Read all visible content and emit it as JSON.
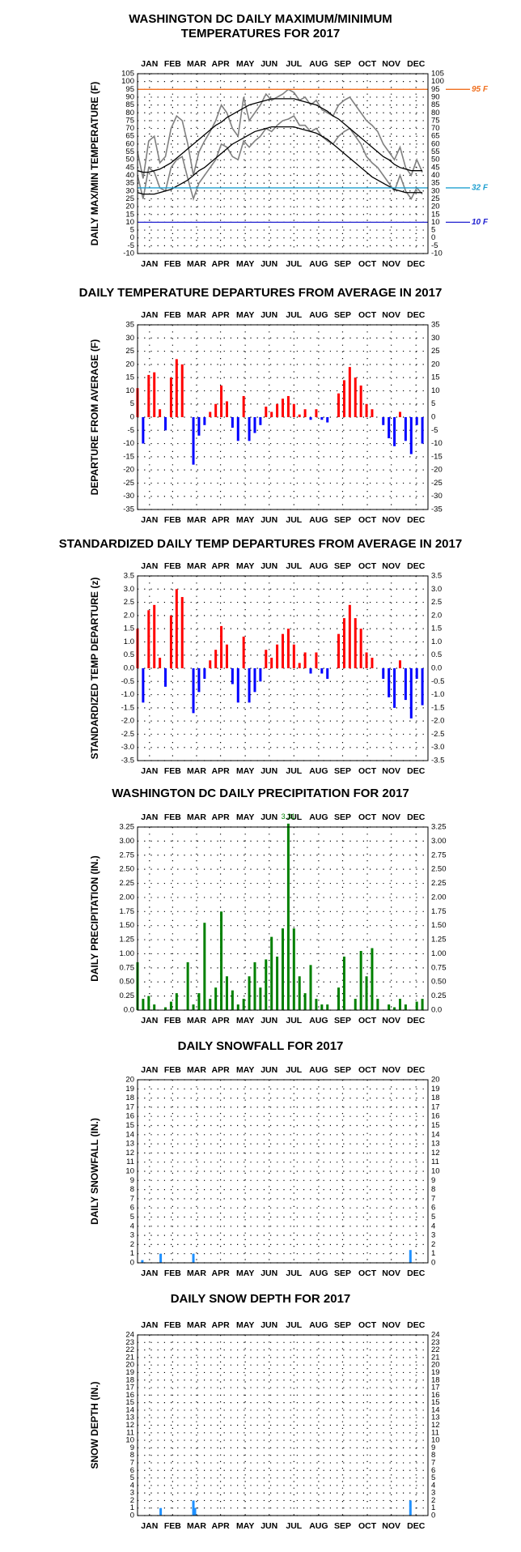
{
  "chart_data": [
    {
      "type": "line",
      "title": [
        "WASHINGTON DC DAILY MAXIMUM/MINIMUM",
        "TEMPERATURES FOR 2017"
      ],
      "y_label": "DAILY MAX/MIN TEMPERATURE (F)",
      "xlim": [
        1,
        365
      ],
      "xticks": [
        {
          "value": 16,
          "label": "JAN"
        },
        {
          "value": 45,
          "label": "FEB"
        },
        {
          "value": 75,
          "label": "MAR"
        },
        {
          "value": 105,
          "label": "APR"
        },
        {
          "value": 136,
          "label": "MAY"
        },
        {
          "value": 166,
          "label": "JUN"
        },
        {
          "value": 197,
          "label": "JUL"
        },
        {
          "value": 228,
          "label": "AUG"
        },
        {
          "value": 258,
          "label": "SEP"
        },
        {
          "value": 289,
          "label": "OCT"
        },
        {
          "value": 319,
          "label": "NOV"
        },
        {
          "value": 350,
          "label": "DEC"
        }
      ],
      "ylim": [
        -10,
        105
      ],
      "yticks": [
        -10,
        -5,
        0,
        5,
        10,
        15,
        20,
        25,
        30,
        35,
        40,
        45,
        50,
        55,
        60,
        65,
        70,
        75,
        80,
        85,
        90,
        95,
        100,
        105
      ],
      "x": [
        1,
        8,
        15,
        22,
        29,
        36,
        43,
        50,
        57,
        64,
        71,
        78,
        85,
        92,
        99,
        106,
        113,
        120,
        127,
        134,
        141,
        148,
        155,
        162,
        169,
        176,
        183,
        190,
        197,
        204,
        211,
        218,
        225,
        232,
        239,
        246,
        253,
        260,
        267,
        274,
        281,
        288,
        295,
        302,
        309,
        316,
        323,
        330,
        337,
        344,
        351,
        358
      ],
      "series": [
        {
          "color": "#808080",
          "values": [
            55,
            38,
            62,
            65,
            48,
            52,
            70,
            78,
            75,
            60,
            40,
            55,
            62,
            68,
            75,
            85,
            80,
            70,
            65,
            90,
            75,
            80,
            85,
            92,
            88,
            90,
            92,
            95,
            93,
            88,
            90,
            85,
            88,
            82,
            80,
            78,
            85,
            88,
            90,
            85,
            80,
            75,
            72,
            68,
            60,
            55,
            50,
            58,
            45,
            40,
            50,
            42
          ]
        },
        {
          "color": "#808080",
          "values": [
            40,
            25,
            45,
            42,
            32,
            30,
            45,
            50,
            52,
            38,
            25,
            35,
            40,
            45,
            50,
            60,
            58,
            52,
            50,
            62,
            58,
            62,
            65,
            70,
            68,
            72,
            75,
            76,
            78,
            72,
            72,
            68,
            70,
            65,
            62,
            60,
            65,
            68,
            70,
            65,
            60,
            52,
            48,
            45,
            40,
            35,
            30,
            40,
            30,
            25,
            32,
            28
          ]
        },
        {
          "color": "#000000",
          "values": [
            43,
            42,
            42,
            43,
            44,
            46,
            48,
            51,
            54,
            57,
            60,
            63,
            66,
            69,
            72,
            74,
            77,
            79,
            81,
            83,
            85,
            86,
            87,
            88,
            89,
            89,
            89,
            89,
            89,
            88,
            87,
            86,
            85,
            83,
            81,
            78,
            76,
            73,
            70,
            67,
            64,
            61,
            58,
            55,
            52,
            50,
            47,
            45,
            44,
            43,
            43,
            43
          ]
        },
        {
          "color": "#000000",
          "values": [
            29,
            28,
            28,
            28,
            29,
            30,
            31,
            33,
            35,
            37,
            40,
            43,
            45,
            48,
            51,
            54,
            57,
            60,
            62,
            64,
            66,
            68,
            69,
            70,
            71,
            71,
            71,
            71,
            71,
            70,
            69,
            68,
            67,
            65,
            63,
            60,
            57,
            54,
            51,
            48,
            45,
            42,
            39,
            37,
            35,
            33,
            31,
            30,
            29,
            29,
            29,
            29
          ]
        }
      ],
      "ref_lines": [
        {
          "value": 95,
          "label": "95 F",
          "color": "#f07020"
        },
        {
          "value": 32,
          "label": "32 F",
          "color": "#20a0d0"
        },
        {
          "value": 10,
          "label": "10 F",
          "color": "#2020d0"
        }
      ]
    },
    {
      "type": "bar",
      "title": [
        "DAILY TEMPERATURE DEPARTURES FROM AVERAGE IN 2017"
      ],
      "y_label": "DEPARTURE FROM AVERAGE (F)",
      "xlim": [
        1,
        365
      ],
      "xticks": [
        {
          "value": 16,
          "label": "JAN"
        },
        {
          "value": 45,
          "label": "FEB"
        },
        {
          "value": 75,
          "label": "MAR"
        },
        {
          "value": 105,
          "label": "APR"
        },
        {
          "value": 136,
          "label": "MAY"
        },
        {
          "value": 166,
          "label": "JUN"
        },
        {
          "value": 197,
          "label": "JUL"
        },
        {
          "value": 228,
          "label": "AUG"
        },
        {
          "value": 258,
          "label": "SEP"
        },
        {
          "value": 289,
          "label": "OCT"
        },
        {
          "value": 319,
          "label": "NOV"
        },
        {
          "value": 350,
          "label": "DEC"
        }
      ],
      "ylim": [
        -35,
        35
      ],
      "yticks": [
        -35,
        -30,
        -25,
        -20,
        -15,
        -10,
        -5,
        0,
        5,
        10,
        15,
        20,
        25,
        30,
        35
      ],
      "x": [
        1,
        8,
        15,
        22,
        29,
        36,
        43,
        50,
        57,
        64,
        71,
        78,
        85,
        92,
        99,
        106,
        113,
        120,
        127,
        134,
        141,
        148,
        155,
        162,
        169,
        176,
        183,
        190,
        197,
        204,
        211,
        218,
        225,
        232,
        239,
        246,
        253,
        260,
        267,
        274,
        281,
        288,
        295,
        302,
        309,
        316,
        323,
        330,
        337,
        344,
        351,
        358
      ],
      "values": [
        11,
        -10,
        16,
        17,
        3,
        -5,
        15,
        22,
        20,
        0,
        -18,
        -7,
        -3,
        2,
        5,
        12,
        6,
        -4,
        -9,
        8,
        -9,
        -6,
        -3,
        4,
        2,
        5,
        7,
        8,
        5,
        1,
        3,
        -1,
        3,
        -1,
        -2,
        0,
        9,
        14,
        19,
        15,
        12,
        5,
        3,
        0,
        -3,
        -8,
        -11,
        2,
        -9,
        -14,
        -3,
        -10
      ],
      "color": "#ff0000",
      "negative_color": "#0000ff"
    },
    {
      "type": "bar",
      "title": [
        "STANDARDIZED DAILY TEMP DEPARTURES FROM AVERAGE IN 2017"
      ],
      "y_label": "STANDARDIZED TEMP DEPARTURE (z)",
      "xlim": [
        1,
        365
      ],
      "xticks": [
        {
          "value": 16,
          "label": "JAN"
        },
        {
          "value": 45,
          "label": "FEB"
        },
        {
          "value": 75,
          "label": "MAR"
        },
        {
          "value": 105,
          "label": "APR"
        },
        {
          "value": 136,
          "label": "MAY"
        },
        {
          "value": 166,
          "label": "JUN"
        },
        {
          "value": 197,
          "label": "JUL"
        },
        {
          "value": 228,
          "label": "AUG"
        },
        {
          "value": 258,
          "label": "SEP"
        },
        {
          "value": 289,
          "label": "OCT"
        },
        {
          "value": 319,
          "label": "NOV"
        },
        {
          "value": 350,
          "label": "DEC"
        }
      ],
      "ylim": [
        -3.5,
        3.5
      ],
      "yticks": [
        -3.5,
        {
          "value": -3,
          "label": "-3.0"
        },
        -2.5,
        {
          "value": -2,
          "label": "-2.0"
        },
        -1.5,
        {
          "value": -1,
          "label": "-1.0"
        },
        -0.5,
        {
          "value": 0,
          "label": "0.0"
        },
        0.5,
        {
          "value": 1,
          "label": "1.0"
        },
        1.5,
        {
          "value": 2,
          "label": "2.0"
        },
        2.5,
        {
          "value": 3,
          "label": "3.0"
        },
        3.5
      ],
      "x": [
        1,
        8,
        15,
        22,
        29,
        36,
        43,
        50,
        57,
        64,
        71,
        78,
        85,
        92,
        99,
        106,
        113,
        120,
        127,
        134,
        141,
        148,
        155,
        162,
        169,
        176,
        183,
        190,
        197,
        204,
        211,
        218,
        225,
        232,
        239,
        246,
        253,
        260,
        267,
        274,
        281,
        288,
        295,
        302,
        309,
        316,
        323,
        330,
        337,
        344,
        351,
        358
      ],
      "values": [
        1.5,
        -1.3,
        2.2,
        2.4,
        0.4,
        -0.7,
        2.0,
        3.0,
        2.7,
        0,
        -1.7,
        -0.9,
        -0.4,
        0.3,
        0.7,
        1.6,
        0.9,
        -0.6,
        -1.3,
        1.2,
        -1.3,
        -0.9,
        -0.5,
        0.7,
        0.4,
        0.9,
        1.3,
        1.5,
        0.9,
        0.2,
        0.6,
        -0.2,
        0.6,
        -0.2,
        -0.4,
        0,
        1.3,
        1.9,
        2.4,
        1.9,
        1.5,
        0.6,
        0.4,
        0,
        -0.4,
        -1.1,
        -1.5,
        0.3,
        -1.2,
        -1.9,
        -0.4,
        -1.4
      ],
      "color": "#ff0000",
      "negative_color": "#0000ff"
    },
    {
      "type": "bar",
      "title": [
        "WASHINGTON DC DAILY PRECIPITATION FOR 2017"
      ],
      "y_label": "DAILY PRECIPITATION (IN.)",
      "annotation": "3.31",
      "xlim": [
        1,
        365
      ],
      "xticks": [
        {
          "value": 16,
          "label": "JAN"
        },
        {
          "value": 45,
          "label": "FEB"
        },
        {
          "value": 75,
          "label": "MAR"
        },
        {
          "value": 105,
          "label": "APR"
        },
        {
          "value": 136,
          "label": "MAY"
        },
        {
          "value": 166,
          "label": "JUN"
        },
        {
          "value": 197,
          "label": "JUL"
        },
        {
          "value": 228,
          "label": "AUG"
        },
        {
          "value": 258,
          "label": "SEP"
        },
        {
          "value": 289,
          "label": "OCT"
        },
        {
          "value": 319,
          "label": "NOV"
        },
        {
          "value": 350,
          "label": "DEC"
        }
      ],
      "ylim": [
        0,
        3.25
      ],
      "yticks": [
        {
          "value": 0,
          "label": "0.0"
        },
        0.25,
        {
          "value": 0.5,
          "label": "0.50"
        },
        0.75,
        {
          "value": 1,
          "label": "1.00"
        },
        1.25,
        {
          "value": 1.5,
          "label": "1.50"
        },
        1.75,
        {
          "value": 2,
          "label": "2.00"
        },
        2.25,
        {
          "value": 2.5,
          "label": "2.50"
        },
        2.75,
        {
          "value": 3,
          "label": "3.00"
        },
        3.25
      ],
      "x": [
        1,
        8,
        15,
        22,
        29,
        36,
        43,
        50,
        57,
        64,
        71,
        78,
        85,
        92,
        99,
        106,
        113,
        120,
        127,
        134,
        141,
        148,
        155,
        162,
        169,
        176,
        183,
        190,
        197,
        204,
        211,
        218,
        225,
        232,
        239,
        246,
        253,
        260,
        267,
        274,
        281,
        288,
        295,
        302,
        309,
        316,
        323,
        330,
        337,
        344,
        351,
        358
      ],
      "values": [
        0.85,
        0.2,
        0.25,
        0.1,
        0,
        0.05,
        0.15,
        0.3,
        0,
        0.85,
        0.1,
        0.3,
        1.55,
        0.2,
        0.4,
        1.75,
        0.6,
        0.35,
        0.1,
        0.2,
        0.6,
        0.85,
        0.4,
        0.9,
        1.3,
        0.95,
        1.45,
        3.31,
        1.45,
        0.6,
        0.3,
        0.8,
        0.2,
        0.1,
        0.1,
        0,
        0.4,
        0.95,
        0,
        0.2,
        1.05,
        0.6,
        1.1,
        0.2,
        0,
        0.1,
        0.05,
        0.2,
        0.1,
        0,
        0.15,
        0.2
      ],
      "color": "#008000"
    },
    {
      "type": "bar",
      "title": [
        "DAILY SNOWFALL FOR 2017"
      ],
      "y_label": "DAILY SNOWFALL (IN.)",
      "xlim": [
        1,
        365
      ],
      "xticks": [
        {
          "value": 16,
          "label": "JAN"
        },
        {
          "value": 45,
          "label": "FEB"
        },
        {
          "value": 75,
          "label": "MAR"
        },
        {
          "value": 105,
          "label": "APR"
        },
        {
          "value": 136,
          "label": "MAY"
        },
        {
          "value": 166,
          "label": "JUN"
        },
        {
          "value": 197,
          "label": "JUL"
        },
        {
          "value": 228,
          "label": "AUG"
        },
        {
          "value": 258,
          "label": "SEP"
        },
        {
          "value": 289,
          "label": "OCT"
        },
        {
          "value": 319,
          "label": "NOV"
        },
        {
          "value": 350,
          "label": "DEC"
        }
      ],
      "ylim": [
        0,
        20
      ],
      "yticks": [
        0,
        1,
        2,
        3,
        4,
        5,
        6,
        7,
        8,
        9,
        10,
        11,
        12,
        13,
        14,
        15,
        16,
        17,
        18,
        19,
        20
      ],
      "x": [
        7,
        30,
        71,
        343
      ],
      "values": [
        0.3,
        1.0,
        1.0,
        1.4
      ],
      "color": "#1e90ff"
    },
    {
      "type": "bar",
      "title": [
        "DAILY SNOW DEPTH FOR 2017"
      ],
      "y_label": "SNOW DEPTH (IN.)",
      "xlim": [
        1,
        365
      ],
      "xticks": [
        {
          "value": 16,
          "label": "JAN"
        },
        {
          "value": 45,
          "label": "FEB"
        },
        {
          "value": 75,
          "label": "MAR"
        },
        {
          "value": 105,
          "label": "APR"
        },
        {
          "value": 136,
          "label": "MAY"
        },
        {
          "value": 166,
          "label": "JUN"
        },
        {
          "value": 197,
          "label": "JUL"
        },
        {
          "value": 228,
          "label": "AUG"
        },
        {
          "value": 258,
          "label": "SEP"
        },
        {
          "value": 289,
          "label": "OCT"
        },
        {
          "value": 319,
          "label": "NOV"
        },
        {
          "value": 350,
          "label": "DEC"
        }
      ],
      "ylim": [
        0,
        24
      ],
      "yticks": [
        0,
        1,
        2,
        3,
        4,
        5,
        6,
        7,
        8,
        9,
        10,
        11,
        12,
        13,
        14,
        15,
        16,
        17,
        18,
        19,
        20,
        21,
        22,
        23,
        24
      ],
      "x": [
        30,
        71,
        72,
        73,
        343
      ],
      "values": [
        1,
        2,
        1,
        1,
        2
      ],
      "color": "#1e90ff"
    }
  ]
}
